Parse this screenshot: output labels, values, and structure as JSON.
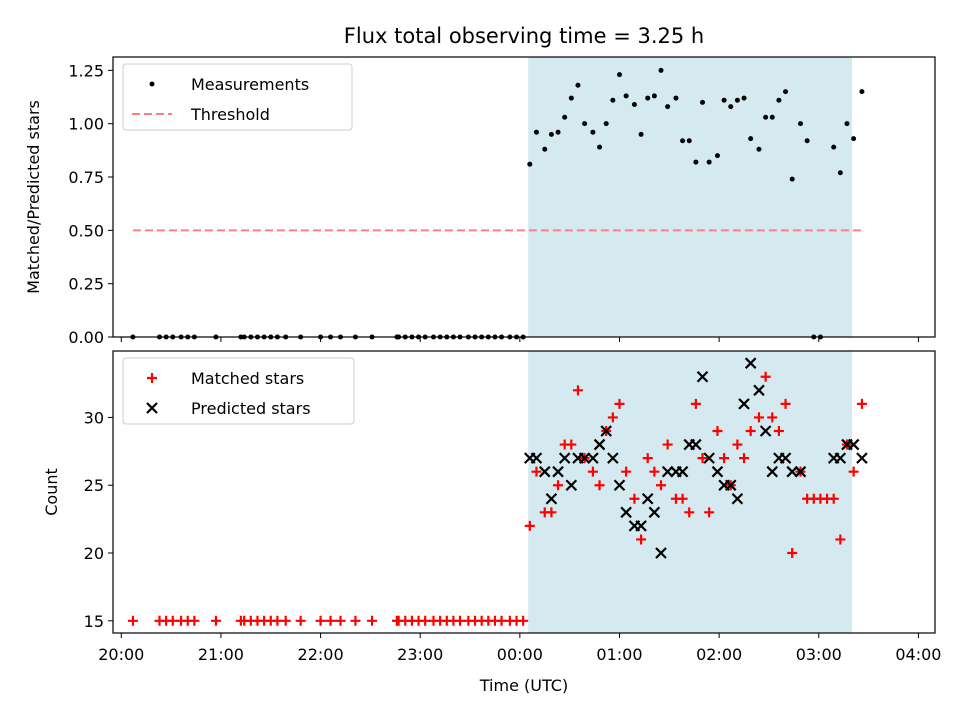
{
  "chart_data": {
    "title": "Flux total observing time = 3.25 h",
    "xlabel": "Time (UTC)",
    "x_tick_labels": [
      "20:00",
      "21:00",
      "22:00",
      "23:00",
      "00:00",
      "01:00",
      "02:00",
      "03:00",
      "04:00"
    ],
    "xlim": [
      "19:55",
      "04:10"
    ],
    "shaded_interval": {
      "start": "00:05",
      "end": "03:20",
      "color": "#d4eaf0"
    },
    "panels": [
      {
        "type": "scatter",
        "ylabel": "Matched/Predicted stars",
        "ylim": [
          0,
          1.3125
        ],
        "y_ticks": [
          "0.00",
          "0.25",
          "0.50",
          "0.75",
          "1.00",
          "1.25"
        ],
        "y_tick_values": [
          0,
          0.25,
          0.5,
          0.75,
          1.0,
          1.25
        ],
        "legend_position": "top-left",
        "series": [
          {
            "name": "Measurements",
            "marker": "dot",
            "color": "#000000",
            "points": [
              [
                "20:07",
                0
              ],
              [
                "20:23",
                0
              ],
              [
                "20:27",
                0
              ],
              [
                "20:31",
                0
              ],
              [
                "20:36",
                0
              ],
              [
                "20:40",
                0
              ],
              [
                "20:44",
                0
              ],
              [
                "20:57",
                0
              ],
              [
                "21:12",
                0
              ],
              [
                "21:14",
                0
              ],
              [
                "21:18",
                0
              ],
              [
                "21:22",
                0
              ],
              [
                "21:26",
                0
              ],
              [
                "21:30",
                0
              ],
              [
                "21:34",
                0
              ],
              [
                "21:39",
                0
              ],
              [
                "21:48",
                0
              ],
              [
                "22:00",
                0
              ],
              [
                "22:06",
                0
              ],
              [
                "22:12",
                0
              ],
              [
                "22:21",
                0
              ],
              [
                "22:31",
                0
              ],
              [
                "22:46",
                0
              ],
              [
                "22:47",
                0
              ],
              [
                "22:51",
                0
              ],
              [
                "22:55",
                0
              ],
              [
                "22:59",
                0
              ],
              [
                "23:03",
                0
              ],
              [
                "23:08",
                0
              ],
              [
                "23:12",
                0
              ],
              [
                "23:16",
                0
              ],
              [
                "23:20",
                0
              ],
              [
                "23:24",
                0
              ],
              [
                "23:29",
                0
              ],
              [
                "23:33",
                0
              ],
              [
                "23:37",
                0
              ],
              [
                "23:41",
                0
              ],
              [
                "23:45",
                0
              ],
              [
                "23:49",
                0
              ],
              [
                "23:54",
                0
              ],
              [
                "23:58",
                0
              ],
              [
                "00:02",
                0
              ],
              [
                "00:06",
                0.81
              ],
              [
                "00:10",
                0.96
              ],
              [
                "00:15",
                0.88
              ],
              [
                "00:19",
                0.95
              ],
              [
                "00:23",
                0.96
              ],
              [
                "00:27",
                1.03
              ],
              [
                "00:31",
                1.12
              ],
              [
                "00:35",
                1.18
              ],
              [
                "00:39",
                1.0
              ],
              [
                "00:44",
                0.96
              ],
              [
                "00:48",
                0.89
              ],
              [
                "00:52",
                1.0
              ],
              [
                "00:56",
                1.11
              ],
              [
                "01:00",
                1.23
              ],
              [
                "01:04",
                1.13
              ],
              [
                "01:09",
                1.09
              ],
              [
                "01:13",
                0.95
              ],
              [
                "01:17",
                1.12
              ],
              [
                "01:21",
                1.13
              ],
              [
                "01:25",
                1.25
              ],
              [
                "01:29",
                1.08
              ],
              [
                "01:34",
                1.12
              ],
              [
                "01:38",
                0.92
              ],
              [
                "01:42",
                0.92
              ],
              [
                "01:46",
                0.82
              ],
              [
                "01:50",
                1.1
              ],
              [
                "01:54",
                0.82
              ],
              [
                "01:59",
                0.85
              ],
              [
                "02:03",
                1.11
              ],
              [
                "02:07",
                1.08
              ],
              [
                "02:11",
                1.11
              ],
              [
                "02:15",
                1.12
              ],
              [
                "02:19",
                0.93
              ],
              [
                "02:24",
                0.88
              ],
              [
                "02:28",
                1.03
              ],
              [
                "02:32",
                1.03
              ],
              [
                "02:36",
                1.11
              ],
              [
                "02:40",
                1.15
              ],
              [
                "02:44",
                0.74
              ],
              [
                "02:49",
                1.0
              ],
              [
                "02:53",
                0.92
              ],
              [
                "02:57",
                0
              ],
              [
                "03:01",
                0
              ],
              [
                "03:09",
                0.89
              ],
              [
                "03:13",
                0.77
              ],
              [
                "03:17",
                1.0
              ],
              [
                "03:21",
                0.93
              ],
              [
                "03:26",
                1.15
              ]
            ]
          },
          {
            "name": "Threshold",
            "marker": "dashed-line",
            "color": "#ff7f7f",
            "points": [
              [
                "20:07",
                0.5
              ],
              [
                "03:26",
                0.5
              ]
            ]
          }
        ]
      },
      {
        "type": "scatter",
        "ylabel": "Count",
        "ylim": [
          14.1,
          34.9
        ],
        "y_ticks": [
          "15",
          "20",
          "25",
          "30"
        ],
        "y_tick_values": [
          15,
          20,
          25,
          30
        ],
        "legend_position": "top-left",
        "series": [
          {
            "name": "Matched stars",
            "marker": "plus",
            "color": "#ff0000",
            "points": [
              [
                "20:07",
                15
              ],
              [
                "20:23",
                15
              ],
              [
                "20:27",
                15
              ],
              [
                "20:31",
                15
              ],
              [
                "20:36",
                15
              ],
              [
                "20:40",
                15
              ],
              [
                "20:44",
                15
              ],
              [
                "20:57",
                15
              ],
              [
                "21:12",
                15
              ],
              [
                "21:14",
                15
              ],
              [
                "21:18",
                15
              ],
              [
                "21:22",
                15
              ],
              [
                "21:26",
                15
              ],
              [
                "21:30",
                15
              ],
              [
                "21:34",
                15
              ],
              [
                "21:39",
                15
              ],
              [
                "21:48",
                15
              ],
              [
                "22:00",
                15
              ],
              [
                "22:06",
                15
              ],
              [
                "22:12",
                15
              ],
              [
                "22:21",
                15
              ],
              [
                "22:31",
                15
              ],
              [
                "22:46",
                15
              ],
              [
                "22:47",
                15
              ],
              [
                "22:51",
                15
              ],
              [
                "22:55",
                15
              ],
              [
                "22:59",
                15
              ],
              [
                "23:03",
                15
              ],
              [
                "23:08",
                15
              ],
              [
                "23:12",
                15
              ],
              [
                "23:16",
                15
              ],
              [
                "23:20",
                15
              ],
              [
                "23:24",
                15
              ],
              [
                "23:29",
                15
              ],
              [
                "23:33",
                15
              ],
              [
                "23:37",
                15
              ],
              [
                "23:41",
                15
              ],
              [
                "23:45",
                15
              ],
              [
                "23:49",
                15
              ],
              [
                "23:54",
                15
              ],
              [
                "23:58",
                15
              ],
              [
                "00:02",
                15
              ],
              [
                "00:06",
                22
              ],
              [
                "00:10",
                26
              ],
              [
                "00:15",
                23
              ],
              [
                "00:19",
                23
              ],
              [
                "00:23",
                25
              ],
              [
                "00:27",
                28
              ],
              [
                "00:31",
                28
              ],
              [
                "00:35",
                32
              ],
              [
                "00:39",
                27
              ],
              [
                "00:44",
                26
              ],
              [
                "00:48",
                25
              ],
              [
                "00:52",
                29
              ],
              [
                "00:56",
                30
              ],
              [
                "01:00",
                31
              ],
              [
                "01:04",
                26
              ],
              [
                "01:09",
                24
              ],
              [
                "01:13",
                21
              ],
              [
                "01:17",
                27
              ],
              [
                "01:21",
                26
              ],
              [
                "01:25",
                25
              ],
              [
                "01:29",
                28
              ],
              [
                "01:34",
                24
              ],
              [
                "01:38",
                24
              ],
              [
                "01:42",
                23
              ],
              [
                "01:46",
                31
              ],
              [
                "01:50",
                27
              ],
              [
                "01:54",
                23
              ],
              [
                "01:59",
                29
              ],
              [
                "02:03",
                27
              ],
              [
                "02:07",
                25
              ],
              [
                "02:11",
                28
              ],
              [
                "02:15",
                27
              ],
              [
                "02:19",
                29
              ],
              [
                "02:24",
                30
              ],
              [
                "02:28",
                33
              ],
              [
                "02:32",
                30
              ],
              [
                "02:36",
                29
              ],
              [
                "02:40",
                31
              ],
              [
                "02:44",
                20
              ],
              [
                "02:49",
                26
              ],
              [
                "02:53",
                24
              ],
              [
                "02:57",
                24
              ],
              [
                "03:01",
                24
              ],
              [
                "03:05",
                24
              ],
              [
                "03:09",
                24
              ],
              [
                "03:13",
                21
              ],
              [
                "03:17",
                28
              ],
              [
                "03:21",
                26
              ],
              [
                "03:26",
                31
              ]
            ]
          },
          {
            "name": "Predicted stars",
            "marker": "x",
            "color": "#000000",
            "points": [
              [
                "00:06",
                27
              ],
              [
                "00:10",
                27
              ],
              [
                "00:15",
                26
              ],
              [
                "00:19",
                24
              ],
              [
                "00:23",
                26
              ],
              [
                "00:27",
                27
              ],
              [
                "00:31",
                25
              ],
              [
                "00:35",
                27
              ],
              [
                "00:39",
                27
              ],
              [
                "00:44",
                27
              ],
              [
                "00:48",
                28
              ],
              [
                "00:52",
                29
              ],
              [
                "00:56",
                27
              ],
              [
                "01:00",
                25
              ],
              [
                "01:04",
                23
              ],
              [
                "01:09",
                22
              ],
              [
                "01:13",
                22
              ],
              [
                "01:17",
                24
              ],
              [
                "01:21",
                23
              ],
              [
                "01:25",
                20
              ],
              [
                "01:29",
                26
              ],
              [
                "01:34",
                26
              ],
              [
                "01:38",
                26
              ],
              [
                "01:42",
                28
              ],
              [
                "01:46",
                28
              ],
              [
                "01:50",
                33
              ],
              [
                "01:54",
                27
              ],
              [
                "01:59",
                26
              ],
              [
                "02:03",
                25
              ],
              [
                "02:07",
                25
              ],
              [
                "02:11",
                24
              ],
              [
                "02:15",
                31
              ],
              [
                "02:19",
                34
              ],
              [
                "02:24",
                32
              ],
              [
                "02:28",
                29
              ],
              [
                "02:32",
                26
              ],
              [
                "02:36",
                27
              ],
              [
                "02:40",
                27
              ],
              [
                "02:44",
                26
              ],
              [
                "02:49",
                26
              ],
              [
                "03:09",
                27
              ],
              [
                "03:13",
                27
              ],
              [
                "03:17",
                28
              ],
              [
                "03:21",
                28
              ],
              [
                "03:26",
                27
              ]
            ]
          }
        ]
      }
    ]
  },
  "colors": {
    "shade": "#d4eaf0",
    "measurements": "#000000",
    "threshold": "#ff7f7f",
    "matched": "#ff0000",
    "predicted": "#000000"
  }
}
